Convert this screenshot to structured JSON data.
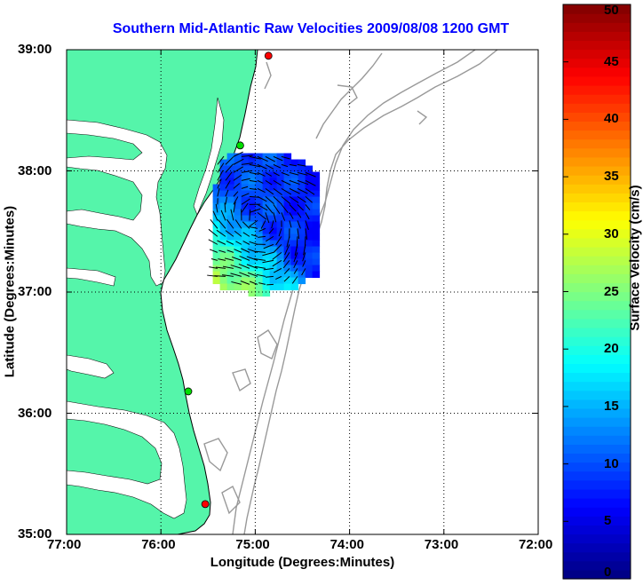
{
  "title": "Southern Mid-Atlantic Raw Velocities 2009/08/08 1200 GMT",
  "x_axis": {
    "label": "Longitude (Degrees:Minutes)",
    "ticks": [
      "77:00",
      "76:00",
      "75:00",
      "74:00",
      "73:00",
      "72:00"
    ]
  },
  "y_axis": {
    "label": "Latitude (Degrees:Minutes)",
    "ticks": [
      "39:00",
      "38:00",
      "37:00",
      "36:00",
      "35:00"
    ]
  },
  "colorbar": {
    "label": "Surface Velocity (cm/s)",
    "ticks": [
      "50",
      "45",
      "40",
      "35",
      "30",
      "25",
      "20",
      "15",
      "10",
      "5",
      "0"
    ],
    "range": [
      0,
      50
    ],
    "colormap": "jet"
  },
  "colors": {
    "title": "#0000ff",
    "land": "#55f5aa",
    "bathymetry": "#999999",
    "grid": "#000000",
    "site_red": "#ff0000",
    "site_green": "#00dd00"
  },
  "map": {
    "lon_range": [
      -77,
      -72
    ],
    "lat_range": [
      35,
      39
    ],
    "grid": "dotted",
    "sites": [
      {
        "lon": -74.86,
        "lat": 38.95,
        "status": "red"
      },
      {
        "lon": -75.16,
        "lat": 38.21,
        "status": "green"
      },
      {
        "lon": -75.71,
        "lat": 36.18,
        "status": "green"
      },
      {
        "lon": -75.53,
        "lat": 35.25,
        "status": "red"
      }
    ]
  }
}
